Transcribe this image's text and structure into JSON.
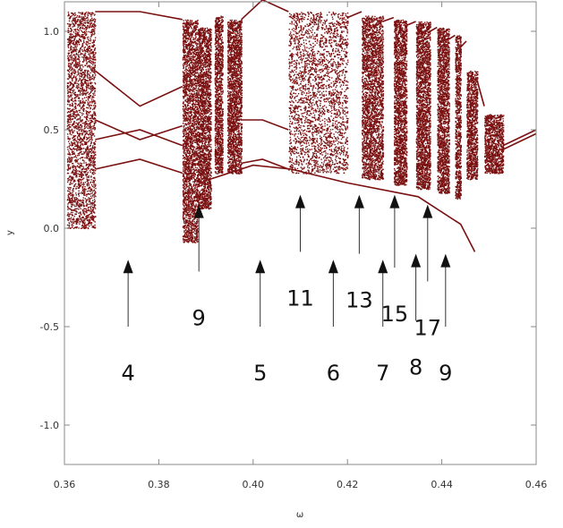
{
  "chart_data": {
    "type": "scatter",
    "title": "",
    "xlabel": "ω",
    "ylabel": "y",
    "xlim": [
      0.36,
      0.46
    ],
    "ylim": [
      -1.2,
      1.15
    ],
    "x_ticks": [
      0.36,
      0.38,
      0.4,
      0.42,
      0.44,
      0.46
    ],
    "x_tick_labels": [
      "0.36",
      "0.38",
      "0.40",
      "0.42",
      "0.44",
      "0.46"
    ],
    "y_ticks": [
      1.0,
      0.5,
      0.0,
      -0.5,
      -1.0
    ],
    "y_tick_labels": [
      "1.0",
      "0.5",
      "0.0",
      "-0.5",
      "-1.0"
    ],
    "grid": false,
    "marker_color": "#7a1010",
    "chaotic_bands": [
      [
        0.3605,
        0.3665,
        0.0,
        1.1
      ],
      [
        0.385,
        0.3882,
        -0.07,
        1.06
      ],
      [
        0.3882,
        0.391,
        0.1,
        1.02
      ],
      [
        0.3918,
        0.3935,
        0.28,
        1.08
      ],
      [
        0.3945,
        0.3975,
        0.28,
        1.06
      ],
      [
        0.4075,
        0.42,
        0.28,
        1.1
      ],
      [
        0.423,
        0.4275,
        0.25,
        1.08
      ],
      [
        0.4298,
        0.4325,
        0.22,
        1.06
      ],
      [
        0.4345,
        0.4375,
        0.2,
        1.05
      ],
      [
        0.439,
        0.4415,
        0.18,
        1.02
      ],
      [
        0.4428,
        0.444,
        0.15,
        0.98
      ],
      [
        0.4452,
        0.4475,
        0.25,
        0.8
      ],
      [
        0.449,
        0.453,
        0.28,
        0.58
      ]
    ],
    "periodic_branches": [
      [
        [
          0.3665,
          1.1
        ],
        [
          0.376,
          1.1
        ],
        [
          0.385,
          1.06
        ]
      ],
      [
        [
          0.3665,
          0.8
        ],
        [
          0.376,
          0.62
        ],
        [
          0.385,
          0.72
        ]
      ],
      [
        [
          0.3665,
          0.55
        ],
        [
          0.376,
          0.45
        ],
        [
          0.385,
          0.52
        ]
      ],
      [
        [
          0.3665,
          0.45
        ],
        [
          0.376,
          0.5
        ],
        [
          0.385,
          0.42
        ]
      ],
      [
        [
          0.3665,
          0.3
        ],
        [
          0.376,
          0.35
        ],
        [
          0.385,
          0.28
        ]
      ],
      [
        [
          0.3975,
          1.06
        ],
        [
          0.402,
          1.16
        ],
        [
          0.4075,
          1.1
        ]
      ],
      [
        [
          0.3975,
          0.55
        ],
        [
          0.402,
          0.55
        ],
        [
          0.4075,
          0.5
        ]
      ],
      [
        [
          0.3975,
          0.33
        ],
        [
          0.402,
          0.35
        ],
        [
          0.4075,
          0.3
        ]
      ],
      [
        [
          0.391,
          0.25
        ],
        [
          0.4,
          0.32
        ],
        [
          0.408,
          0.3
        ],
        [
          0.42,
          0.23
        ],
        [
          0.435,
          0.16
        ],
        [
          0.444,
          0.02
        ],
        [
          0.447,
          -0.12
        ]
      ],
      [
        [
          0.42,
          1.07
        ],
        [
          0.423,
          1.1
        ]
      ],
      [
        [
          0.4275,
          1.05
        ],
        [
          0.4298,
          1.07
        ]
      ],
      [
        [
          0.4325,
          1.03
        ],
        [
          0.4345,
          1.05
        ]
      ],
      [
        [
          0.4375,
          1.0
        ],
        [
          0.439,
          1.02
        ]
      ],
      [
        [
          0.4415,
          0.96
        ],
        [
          0.4428,
          0.98
        ]
      ],
      [
        [
          0.444,
          0.92
        ],
        [
          0.4452,
          0.95
        ]
      ],
      [
        [
          0.4475,
          0.75
        ],
        [
          0.449,
          0.62
        ]
      ],
      [
        [
          0.453,
          0.42
        ],
        [
          0.46,
          0.5
        ]
      ],
      [
        [
          0.453,
          0.4
        ],
        [
          0.46,
          0.48
        ]
      ]
    ],
    "annotations": [
      {
        "label": "4",
        "x": 0.3735,
        "y_tip": -0.16,
        "y_tail": -0.5
      },
      {
        "label": "9",
        "x": 0.3885,
        "y_tip": 0.12,
        "y_tail": -0.22
      },
      {
        "label": "5",
        "x": 0.4015,
        "y_tip": -0.16,
        "y_tail": -0.5
      },
      {
        "label": "11",
        "x": 0.41,
        "y_tip": 0.17,
        "y_tail": -0.12
      },
      {
        "label": "6",
        "x": 0.417,
        "y_tip": -0.16,
        "y_tail": -0.5
      },
      {
        "label": "13",
        "x": 0.4225,
        "y_tip": 0.17,
        "y_tail": -0.13
      },
      {
        "label": "7",
        "x": 0.4275,
        "y_tip": -0.16,
        "y_tail": -0.5
      },
      {
        "label": "15",
        "x": 0.43,
        "y_tip": 0.17,
        "y_tail": -0.2
      },
      {
        "label": "8",
        "x": 0.4345,
        "y_tip": -0.13,
        "y_tail": -0.47
      },
      {
        "label": "17",
        "x": 0.437,
        "y_tip": 0.12,
        "y_tail": -0.27
      },
      {
        "label": "9",
        "x": 0.4408,
        "y_tip": -0.13,
        "y_tail": -0.5
      }
    ]
  }
}
